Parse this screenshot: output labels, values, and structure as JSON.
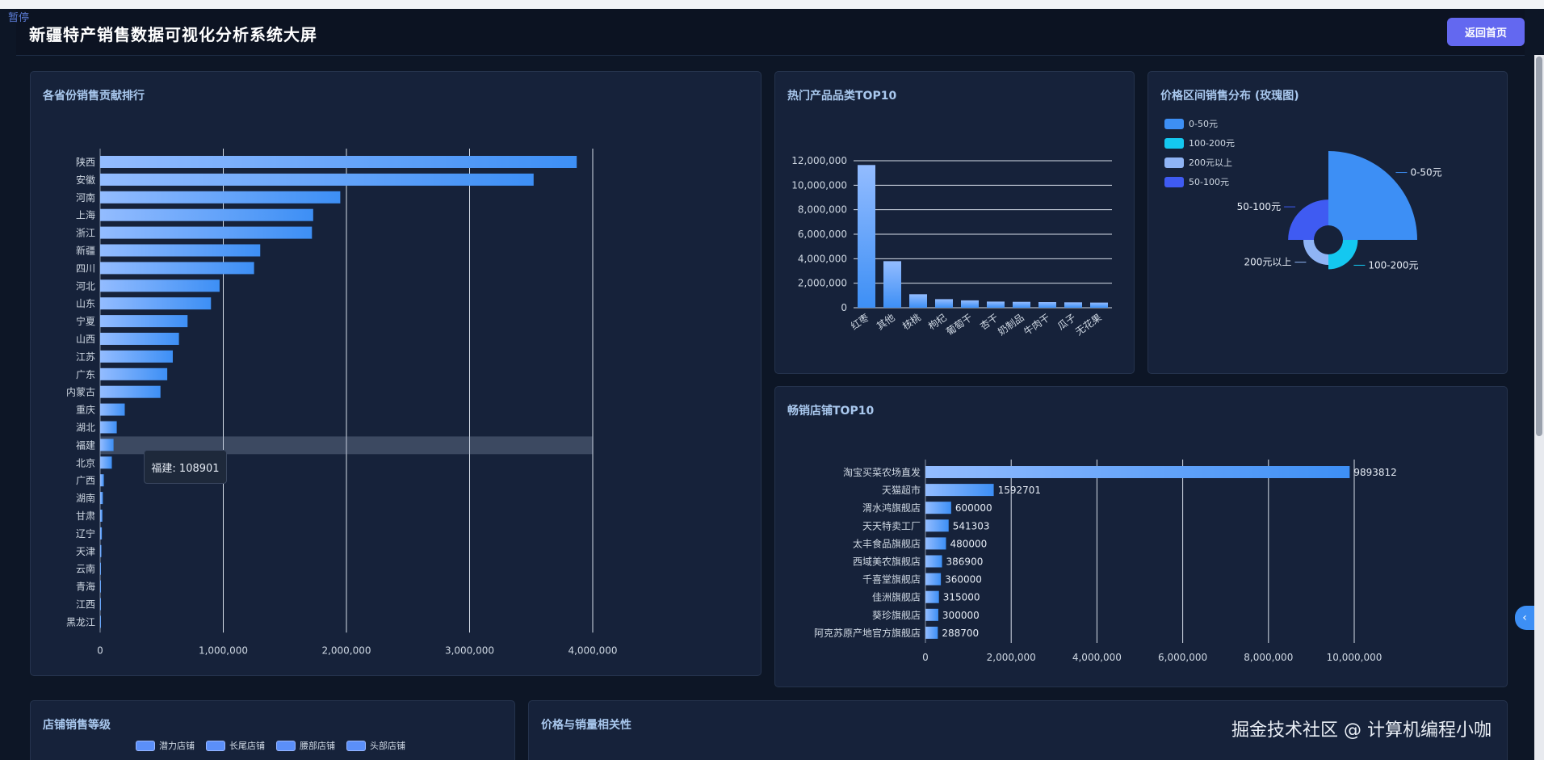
{
  "paused_label": "暂停",
  "header": {
    "title": "新疆特产销售数据可视化分析系统大屏",
    "back_label": "返回首页"
  },
  "watermark": "掘金技术社区 @ 计算机编程小咖",
  "panels": {
    "province": {
      "title": "各省份销售贡献排行"
    },
    "category": {
      "title": "热门产品品类TOP10"
    },
    "price": {
      "title": "价格区间销售分布 (玫瑰图)"
    },
    "store": {
      "title": "畅销店铺TOP10"
    },
    "level": {
      "title": "店铺销售等级",
      "legend": [
        "潜力店铺",
        "长尾店铺",
        "腰部店铺",
        "头部店铺"
      ]
    },
    "corr": {
      "title": "价格与销量相关性"
    }
  },
  "tooltip": {
    "label": "福建: 108901"
  },
  "colors": {
    "bar_start": "#93bcff",
    "bar_end": "#3d8ff5",
    "accent": "#6368f0"
  },
  "chart_data": [
    {
      "id": "province",
      "type": "bar",
      "orientation": "horizontal",
      "categories": [
        "陕西",
        "安徽",
        "河南",
        "上海",
        "浙江",
        "新疆",
        "四川",
        "河北",
        "山东",
        "宁夏",
        "山西",
        "江苏",
        "广东",
        "内蒙古",
        "重庆",
        "湖北",
        "福建",
        "北京",
        "广西",
        "湖南",
        "甘肃",
        "辽宁",
        "天津",
        "云南",
        "青海",
        "江西",
        "黑龙江"
      ],
      "values": [
        3870000,
        3520000,
        1950000,
        1730000,
        1720000,
        1300000,
        1250000,
        970000,
        900000,
        710000,
        640000,
        590000,
        545000,
        490000,
        200000,
        135000,
        108901,
        95000,
        30000,
        22000,
        18000,
        14000,
        10000,
        6000,
        4000,
        2500,
        1500
      ],
      "xlim": [
        0,
        4000000
      ],
      "xticks": [
        "0",
        "1,000,000",
        "2,000,000",
        "3,000,000",
        "4,000,000"
      ],
      "highlight": "福建"
    },
    {
      "id": "category",
      "type": "bar",
      "categories": [
        "红枣",
        "其他",
        "核桃",
        "枸杞",
        "葡萄干",
        "杏干",
        "奶制品",
        "牛肉干",
        "瓜子",
        "无花果"
      ],
      "values": [
        11650000,
        3800000,
        1100000,
        700000,
        600000,
        500000,
        480000,
        460000,
        440000,
        420000
      ],
      "ylim": [
        0,
        12000000
      ],
      "yticks": [
        "0",
        "2,000,000",
        "4,000,000",
        "6,000,000",
        "8,000,000",
        "10,000,000",
        "12,000,000"
      ]
    },
    {
      "id": "price",
      "type": "pie",
      "variant": "rose",
      "slices": [
        {
          "name": "0-50元",
          "value": 100,
          "color": "#3d8ff5"
        },
        {
          "name": "100-200元",
          "value": 4,
          "color": "#14c8f0"
        },
        {
          "name": "200元以上",
          "value": 2,
          "color": "#8fb4f5"
        },
        {
          "name": "50-100元",
          "value": 12,
          "color": "#3f5bf2"
        }
      ]
    },
    {
      "id": "store",
      "type": "bar",
      "orientation": "horizontal",
      "categories": [
        "淘宝买菜农场直发",
        "天猫超市",
        "渭水鸿旗舰店",
        "天天特卖工厂",
        "太丰食品旗舰店",
        "西域美农旗舰店",
        "千喜堂旗舰店",
        "佳洲旗舰店",
        "葵珍旗舰店",
        "阿克苏原产地官方旗舰店"
      ],
      "values": [
        9893812,
        1592701,
        600000,
        541303,
        480000,
        386900,
        360000,
        315000,
        300000,
        288700
      ],
      "value_labels": [
        "9893812",
        "1592701",
        "600000",
        "541303",
        "480000",
        "386900",
        "360000",
        "315000",
        "300000",
        "288700"
      ],
      "xlim": [
        0,
        10000000
      ],
      "xticks": [
        "0",
        "2,000,000",
        "4,000,000",
        "6,000,000",
        "8,000,000",
        "10,000,000"
      ]
    }
  ]
}
